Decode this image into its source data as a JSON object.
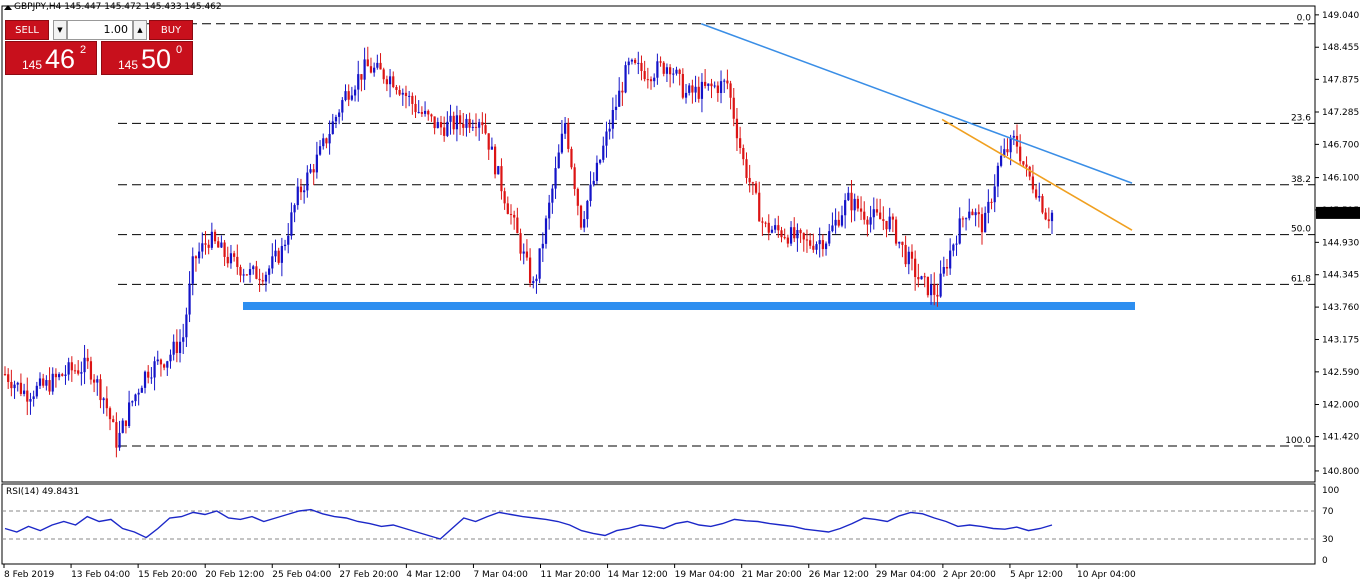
{
  "header": {
    "symbol": "GBPJPY,H4",
    "ohlc": "145.447 145.472 145.433 145.462"
  },
  "trade_panel": {
    "sell_label": "SELL",
    "buy_label": "BUY",
    "lot": "1.00",
    "sell_big": "145",
    "sell_main": "46",
    "sell_sup": "2",
    "buy_big": "145",
    "buy_main": "50",
    "buy_sup": "0"
  },
  "colors": {
    "bull": "#1414c8",
    "bear": "#dc1414",
    "trend_blue": "#3a8ee6",
    "trend_orange": "#f0a020",
    "support_zone": "#2d8ef0",
    "rsi_line": "#1c28c8",
    "current_price_bg": "#000000"
  },
  "chart_data": [
    {
      "type": "candlestick",
      "symbol": "GBPJPY",
      "timeframe": "H4",
      "current_price": "145.462",
      "ylim": [
        140.6,
        149.2
      ],
      "price_ticks": [
        "149.040",
        "148.455",
        "147.875",
        "147.285",
        "146.700",
        "146.100",
        "145.515",
        "144.930",
        "144.345",
        "143.760",
        "143.175",
        "142.590",
        "142.000",
        "141.420",
        "140.800"
      ],
      "x_ticks": [
        "8 Feb 2019",
        "13 Feb 04:00",
        "15 Feb 20:00",
        "20 Feb 12:00",
        "25 Feb 04:00",
        "27 Feb 20:00",
        "4 Mar 12:00",
        "7 Mar 04:00",
        "11 Mar 20:00",
        "14 Mar 12:00",
        "19 Mar 04:00",
        "21 Mar 20:00",
        "26 Mar 12:00",
        "29 Mar 04:00",
        "2 Apr 20:00",
        "5 Apr 12:00",
        "10 Apr 04:00"
      ],
      "fibonacci_levels": [
        {
          "label": "0.0",
          "price": 148.88
        },
        {
          "label": "23.6",
          "price": 147.08
        },
        {
          "label": "38.2",
          "price": 145.97
        },
        {
          "label": "50.0",
          "price": 145.07
        },
        {
          "label": "61.8",
          "price": 144.17
        },
        {
          "label": "100.0",
          "price": 141.25
        }
      ],
      "support_zone": {
        "price": 143.78
      },
      "trendlines": [
        {
          "name": "blue",
          "from": {
            "bar": 0.665,
            "price": 148.88
          },
          "to": {
            "bar": 1.0,
            "price": 146.0
          }
        },
        {
          "name": "orange",
          "from": {
            "bar": 0.895,
            "price": 147.15
          },
          "to": {
            "bar": 1.0,
            "price": 145.15
          }
        }
      ],
      "close_path": [
        {
          "t": 0.0,
          "p": 142.55
        },
        {
          "t": 0.02,
          "p": 142.2
        },
        {
          "t": 0.04,
          "p": 142.35
        },
        {
          "t": 0.06,
          "p": 142.6
        },
        {
          "t": 0.08,
          "p": 142.7
        },
        {
          "t": 0.095,
          "p": 142.1
        },
        {
          "t": 0.107,
          "p": 141.3
        },
        {
          "t": 0.12,
          "p": 142.0
        },
        {
          "t": 0.135,
          "p": 142.6
        },
        {
          "t": 0.155,
          "p": 142.85
        },
        {
          "t": 0.17,
          "p": 143.2
        },
        {
          "t": 0.18,
          "p": 144.6
        },
        {
          "t": 0.195,
          "p": 145.0
        },
        {
          "t": 0.215,
          "p": 144.6
        },
        {
          "t": 0.235,
          "p": 144.35
        },
        {
          "t": 0.25,
          "p": 144.4
        },
        {
          "t": 0.265,
          "p": 144.8
        },
        {
          "t": 0.28,
          "p": 145.8
        },
        {
          "t": 0.3,
          "p": 146.5
        },
        {
          "t": 0.325,
          "p": 147.6
        },
        {
          "t": 0.345,
          "p": 148.1
        },
        {
          "t": 0.37,
          "p": 147.9
        },
        {
          "t": 0.395,
          "p": 147.3
        },
        {
          "t": 0.415,
          "p": 147.0
        },
        {
          "t": 0.435,
          "p": 147.1
        },
        {
          "t": 0.455,
          "p": 147.2
        },
        {
          "t": 0.47,
          "p": 146.2
        },
        {
          "t": 0.49,
          "p": 145.0
        },
        {
          "t": 0.505,
          "p": 144.1
        },
        {
          "t": 0.52,
          "p": 145.6
        },
        {
          "t": 0.535,
          "p": 147.1
        },
        {
          "t": 0.55,
          "p": 145.3
        },
        {
          "t": 0.565,
          "p": 146.2
        },
        {
          "t": 0.58,
          "p": 147.2
        },
        {
          "t": 0.595,
          "p": 148.1
        },
        {
          "t": 0.615,
          "p": 148.0
        },
        {
          "t": 0.635,
          "p": 148.15
        },
        {
          "t": 0.65,
          "p": 147.6
        },
        {
          "t": 0.67,
          "p": 147.7
        },
        {
          "t": 0.69,
          "p": 147.8
        },
        {
          "t": 0.705,
          "p": 146.4
        },
        {
          "t": 0.725,
          "p": 145.2
        },
        {
          "t": 0.745,
          "p": 145.1
        },
        {
          "t": 0.765,
          "p": 144.9
        },
        {
          "t": 0.785,
          "p": 145.0
        },
        {
          "t": 0.805,
          "p": 145.7
        },
        {
          "t": 0.825,
          "p": 145.4
        },
        {
          "t": 0.845,
          "p": 145.3
        },
        {
          "t": 0.86,
          "p": 144.7
        },
        {
          "t": 0.875,
          "p": 144.2
        },
        {
          "t": 0.89,
          "p": 144.0
        },
        {
          "t": 0.905,
          "p": 144.9
        },
        {
          "t": 0.92,
          "p": 145.6
        },
        {
          "t": 0.935,
          "p": 145.2
        },
        {
          "t": 0.95,
          "p": 146.4
        },
        {
          "t": 0.965,
          "p": 146.8
        },
        {
          "t": 0.975,
          "p": 146.2
        },
        {
          "t": 0.985,
          "p": 145.9
        },
        {
          "t": 0.995,
          "p": 145.4
        },
        {
          "t": 1.0,
          "p": 145.46
        }
      ]
    },
    {
      "type": "line",
      "name": "RSI(14) 49.8431",
      "ylim": [
        0,
        100
      ],
      "levels": [
        "100",
        "70",
        "30",
        "0"
      ],
      "values": [
        45,
        40,
        48,
        42,
        50,
        55,
        50,
        62,
        55,
        58,
        45,
        40,
        32,
        45,
        60,
        62,
        68,
        65,
        70,
        60,
        58,
        62,
        55,
        60,
        65,
        70,
        72,
        66,
        62,
        60,
        55,
        52,
        48,
        50,
        45,
        40,
        35,
        30,
        45,
        60,
        55,
        62,
        68,
        65,
        62,
        60,
        58,
        55,
        50,
        42,
        38,
        35,
        42,
        45,
        50,
        48,
        45,
        52,
        55,
        50,
        48,
        52,
        58,
        56,
        55,
        52,
        50,
        48,
        44,
        42,
        40,
        45,
        52,
        60,
        58,
        55,
        63,
        68,
        66,
        60,
        55,
        48,
        50,
        48,
        45,
        44,
        47,
        42,
        45,
        50
      ]
    }
  ]
}
